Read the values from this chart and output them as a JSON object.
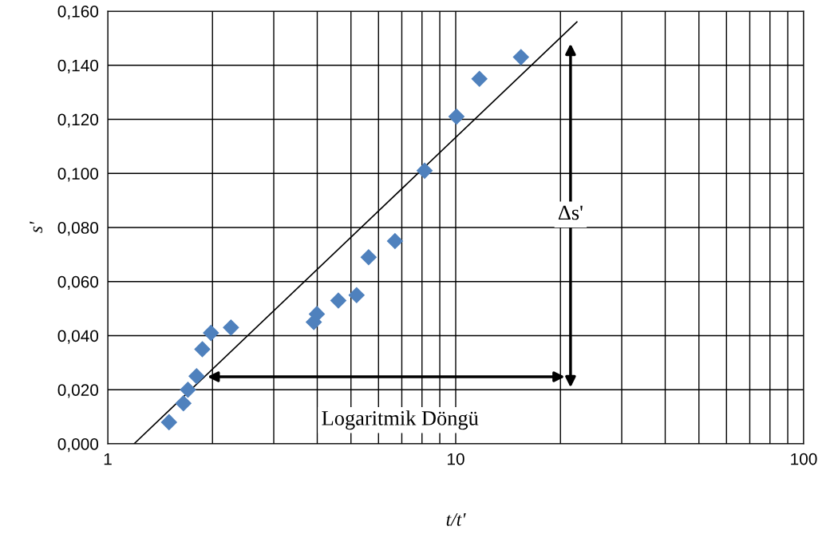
{
  "chart_data": {
    "type": "scatter",
    "xlabel": "t/t'",
    "ylabel": "s'",
    "log": "x",
    "grid": true,
    "xlim": [
      1,
      100
    ],
    "xticks": [
      1,
      10,
      100
    ],
    "ylim": [
      0,
      0.16
    ],
    "yticks": [
      {
        "value": 0,
        "label": "0,000"
      },
      {
        "value": 0.02,
        "label": "0,020"
      },
      {
        "value": 0.04,
        "label": "0,040"
      },
      {
        "value": 0.06,
        "label": "0,060"
      },
      {
        "value": 0.08,
        "label": "0,080"
      },
      {
        "value": 0.1,
        "label": "0,100"
      },
      {
        "value": 0.12,
        "label": "0,120"
      },
      {
        "value": 0.14,
        "label": "0,140"
      },
      {
        "value": 0.16,
        "label": "0,160"
      }
    ],
    "series": [
      {
        "marker": "diamond",
        "color": "#4f81bd",
        "x": [
          1.5,
          1.65,
          1.7,
          1.8,
          1.87,
          1.98,
          2.26,
          3.91,
          3.99,
          4.6,
          5.19,
          5.62,
          6.69,
          8.14,
          10.05,
          11.7,
          15.4
        ],
        "values": [
          0.008,
          0.015,
          0.02,
          0.025,
          0.035,
          0.041,
          0.043,
          0.045,
          0.048,
          0.053,
          0.055,
          0.069,
          0.075,
          0.101,
          0.121,
          0.135,
          0.143
        ]
      },
      {
        "type": "line",
        "color": "#000000",
        "x": [
          1.19,
          22.3
        ],
        "values": [
          0,
          0.156
        ]
      }
    ],
    "annotations": [
      "Logaritmik Döngü",
      "Δs'"
    ]
  }
}
